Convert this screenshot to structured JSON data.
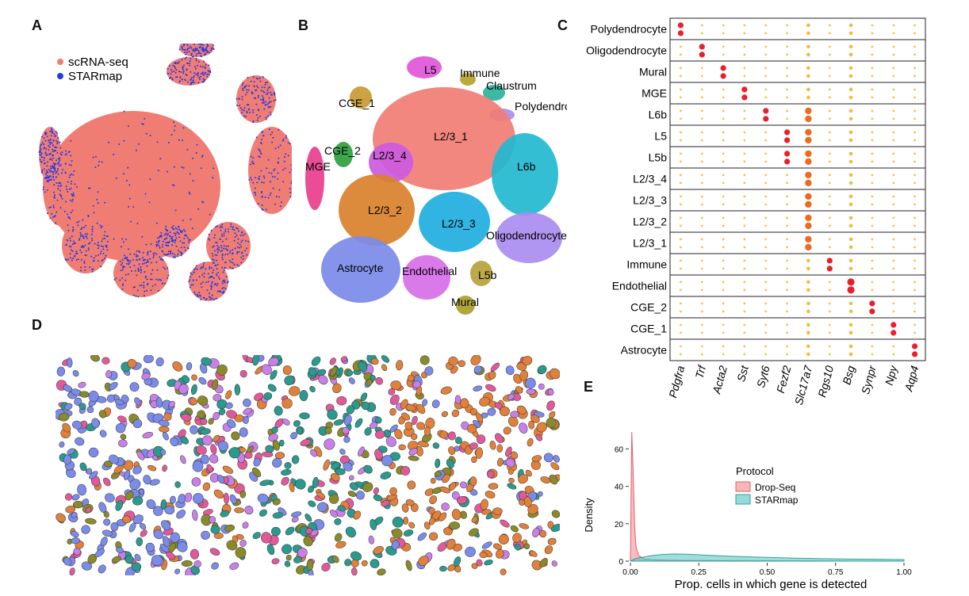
{
  "panels": {
    "a": "A",
    "b": "B",
    "c": "C",
    "d": "D",
    "e": "E"
  },
  "colors": {
    "scrna": "#f07d74",
    "starmap": "#2439e3",
    "Polydendrocyte": "#a98cf0",
    "Oligodendrocyte": "#a98cf0",
    "Mural": "#a8a02a",
    "MGE": "#e83e8c",
    "L6b": "#22b8d0",
    "L5": "#e056d8",
    "L5b": "#b7a23a",
    "L2/3_4": "#cc5ae0",
    "L2/3_3": "#1faee0",
    "L2/3_2": "#d9812b",
    "L2/3_1": "#f07d74",
    "Immune": "#b4a22c",
    "Endothelial": "#d66ee8",
    "CGE_2": "#2e9f3e",
    "CGE_1": "#c89a32",
    "Astrocyte": "#7b8be8",
    "Claustrum": "#2bb39a",
    "drop": "#f2868a",
    "star": "#4fc3c0",
    "cellA": "#7b8be8",
    "cellB": "#2b9a8e",
    "cellC": "#e0803a",
    "cellD": "#e05a9a",
    "cellE": "#8a8a2a",
    "cellF": "#c880e8"
  },
  "panel_a": {
    "legend": [
      "scRNA-seq",
      "STARmap"
    ]
  },
  "panel_b": {
    "labels": [
      "L5",
      "Immune",
      "Claustrum",
      "CGE_1",
      "Polydendrocyte",
      "L2/3_1",
      "CGE_2",
      "L2/3_4",
      "MGE",
      "L6b",
      "L2/3_2",
      "L2/3_3",
      "Oligodendrocyte",
      "Astrocyte",
      "Endothelial",
      "L5b",
      "Mural"
    ]
  },
  "chart_data": [
    {
      "type": "dotplot",
      "panel": "C",
      "rows": [
        "Polydendrocyte",
        "Oligodendrocyte",
        "Mural",
        "MGE",
        "L6b",
        "L5",
        "L5b",
        "L2/3_4",
        "L2/3_3",
        "L2/3_2",
        "L2/3_1",
        "Immune",
        "Endothelial",
        "CGE_2",
        "CGE_1",
        "Astrocyte"
      ],
      "genes": [
        "Pdgfra",
        "Trf",
        "Acta2",
        "Sst",
        "Syt6",
        "Fezf2",
        "Slc17a7",
        "Rgs10",
        "Bsg",
        "Synpr",
        "Npy",
        "Aqp4"
      ],
      "note": "two sub-rows per cell type (scRNA-seq, STARmap); size/color = expression",
      "highlights": [
        {
          "row": "Polydendrocyte",
          "gene": "Pdgfra"
        },
        {
          "row": "Oligodendrocyte",
          "gene": "Trf"
        },
        {
          "row": "Mural",
          "gene": "Acta2"
        },
        {
          "row": "MGE",
          "gene": "Sst"
        },
        {
          "row": "L6b",
          "gene": "Syt6"
        },
        {
          "row": "L5",
          "gene": "Fezf2"
        },
        {
          "row": "L5b",
          "gene": "Fezf2"
        },
        {
          "row": "Immune",
          "gene": "Rgs10"
        },
        {
          "row": "Endothelial",
          "gene": "Bsg"
        },
        {
          "row": "CGE_2",
          "gene": "Synpr"
        },
        {
          "row": "CGE_1",
          "gene": "Npy"
        },
        {
          "row": "Astrocyte",
          "gene": "Aqp4"
        }
      ],
      "broad": {
        "gene": "Slc17a7",
        "rows": [
          "L6b",
          "L5",
          "L5b",
          "L2/3_4",
          "L2/3_3",
          "L2/3_2",
          "L2/3_1"
        ]
      }
    },
    {
      "type": "area",
      "panel": "E",
      "title": "",
      "xlabel": "Prop. cells in which gene is detected",
      "ylabel": "Density",
      "xlim": [
        0,
        1
      ],
      "ylim": [
        0,
        72
      ],
      "xticks": [
        "0.00",
        "0.25",
        "0.50",
        "0.75",
        "1.00"
      ],
      "xtick_values": [
        0,
        0.25,
        0.5,
        0.75,
        1
      ],
      "yticks": [
        0,
        20,
        40,
        60
      ],
      "legend_title": "Protocol",
      "series": [
        {
          "name": "Drop-Seq",
          "x": [
            0,
            0.005,
            0.01,
            0.015,
            0.02,
            0.03,
            0.05,
            0.08,
            0.12,
            0.2,
            0.3,
            0.5,
            0.75,
            1.0
          ],
          "y": [
            0,
            69,
            48,
            20,
            8,
            3,
            1.2,
            0.8,
            0.6,
            0.4,
            0.3,
            0.2,
            0.1,
            0
          ]
        },
        {
          "name": "STARmap",
          "x": [
            0,
            0.02,
            0.05,
            0.08,
            0.12,
            0.16,
            0.2,
            0.25,
            0.3,
            0.4,
            0.5,
            0.6,
            0.7,
            0.8,
            0.9,
            1.0
          ],
          "y": [
            0,
            1.5,
            2.2,
            3.0,
            3.6,
            3.8,
            3.7,
            3.4,
            3.0,
            2.4,
            2.0,
            1.6,
            1.3,
            1.1,
            1.0,
            0.8
          ]
        }
      ]
    }
  ]
}
